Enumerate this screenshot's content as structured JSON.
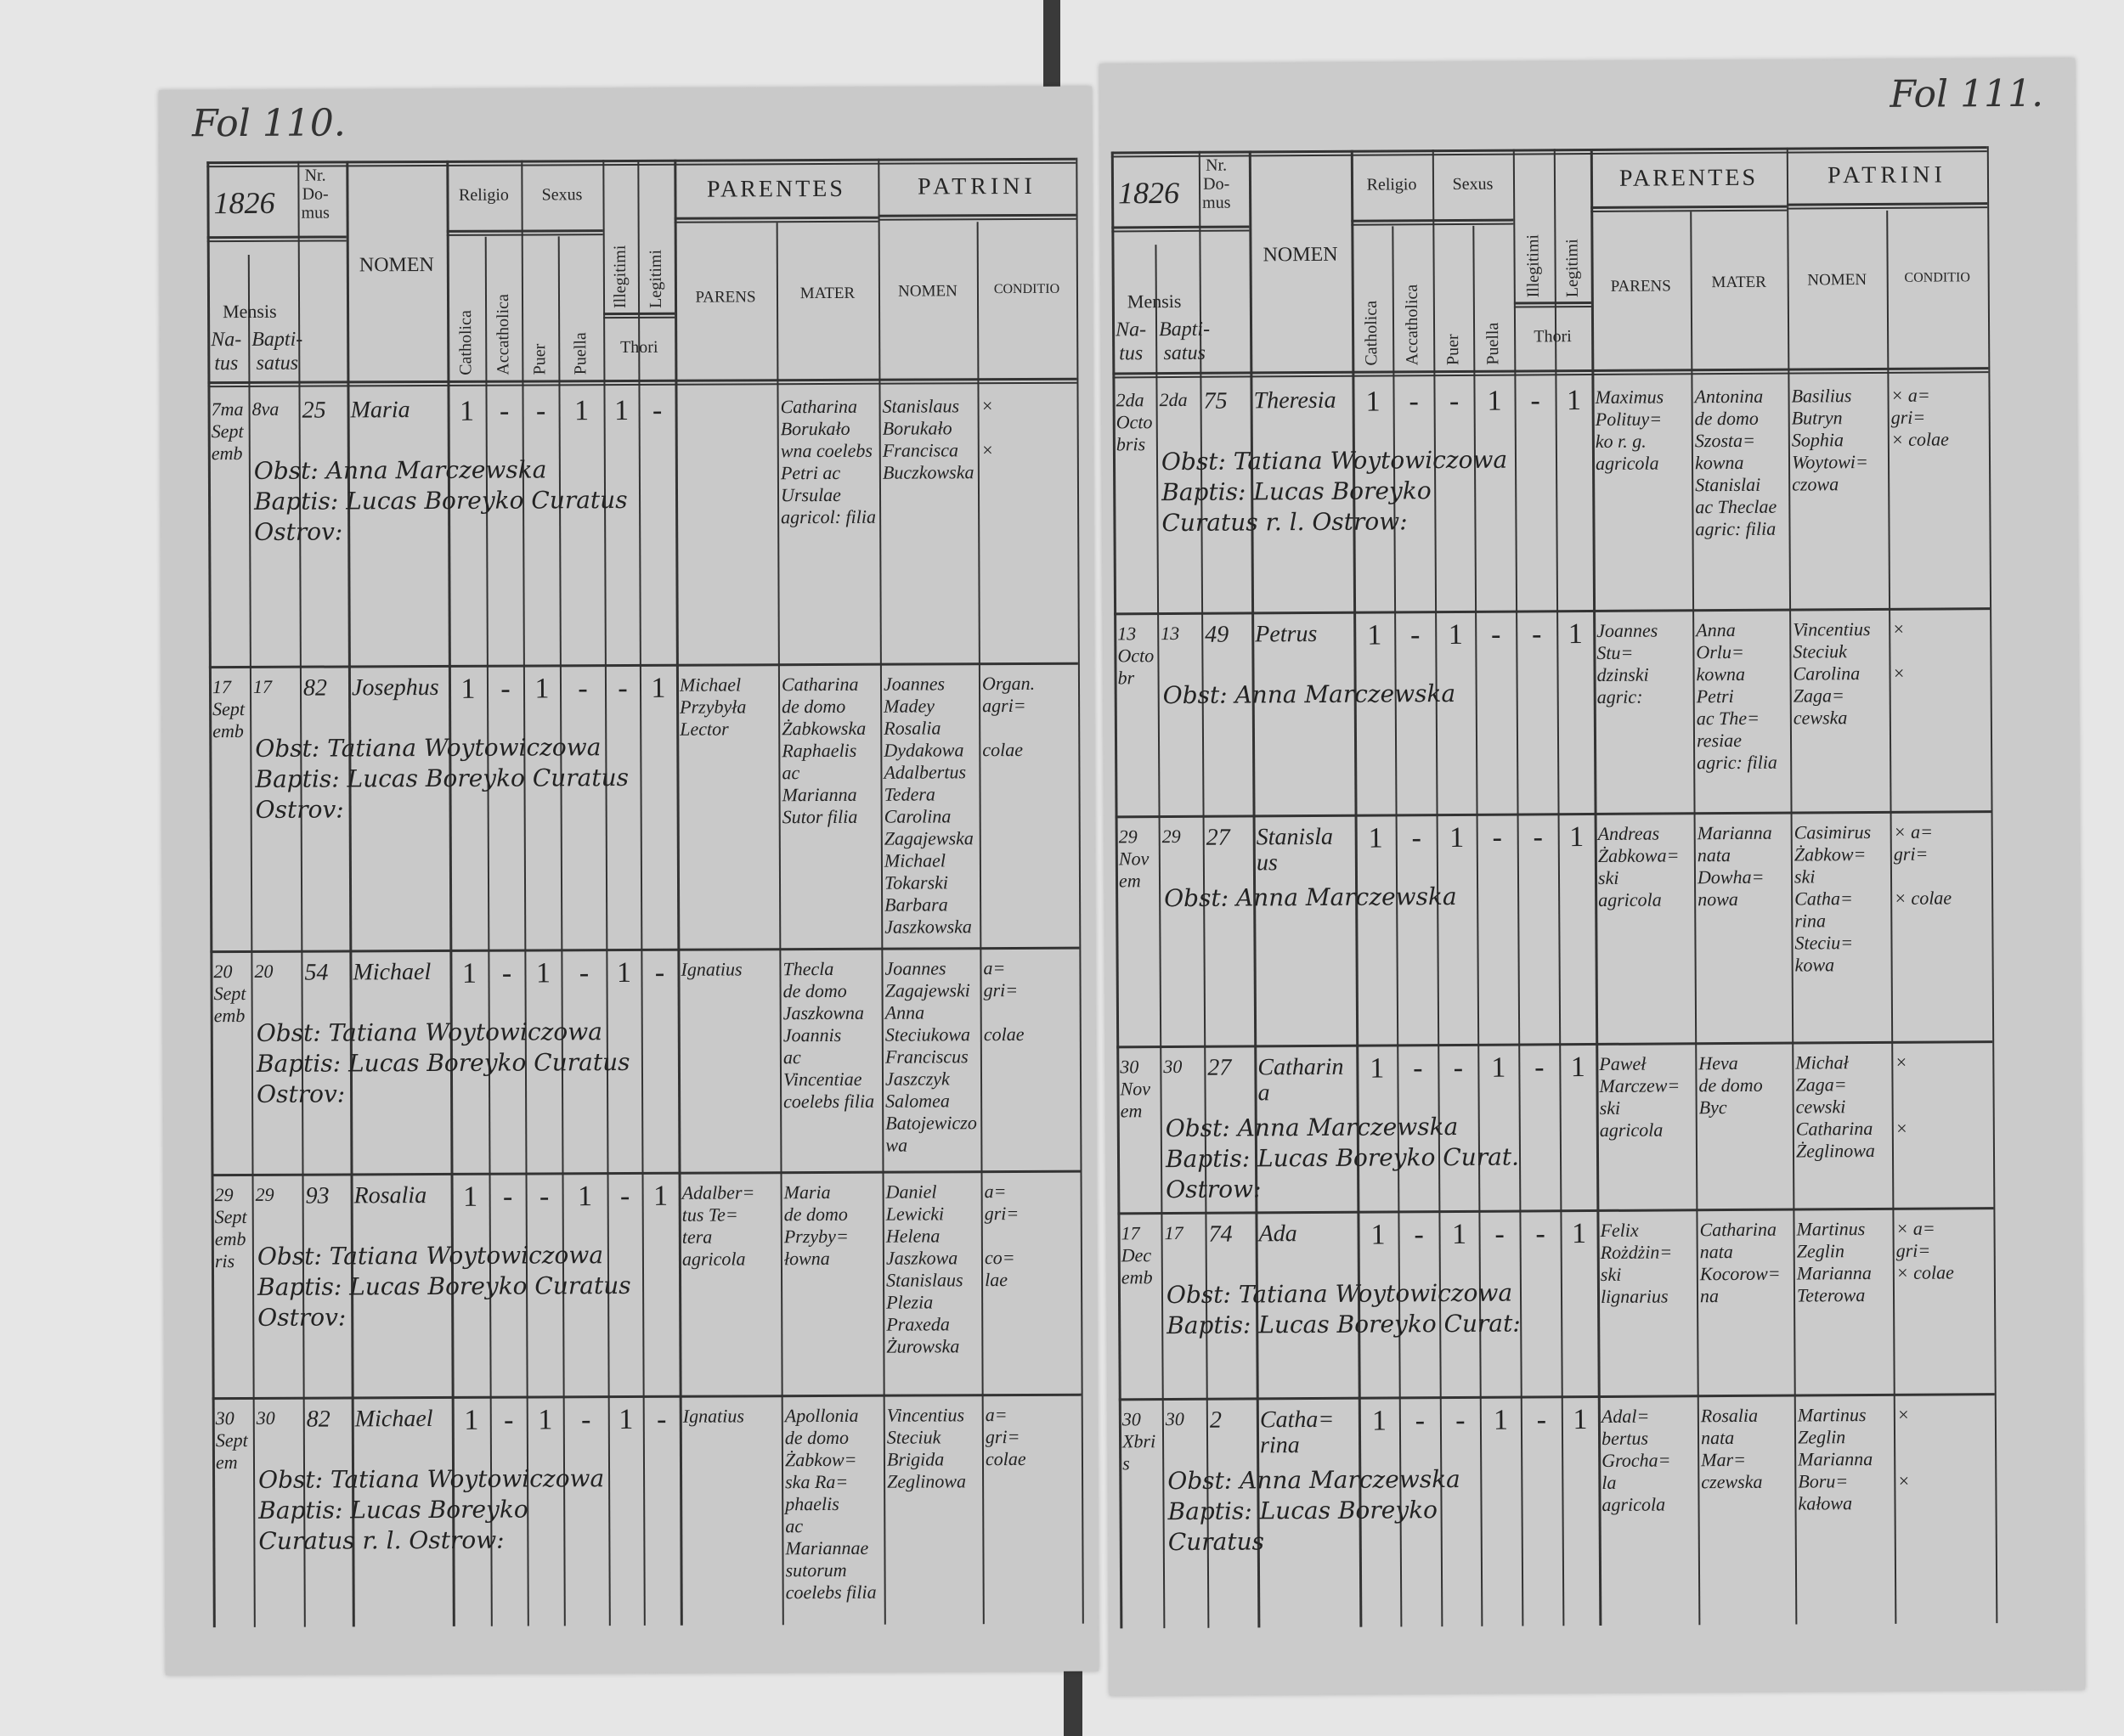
{
  "document": {
    "headers": {
      "mensis": "Mensis",
      "natus": "Na-\ntus",
      "baptisatus": "Bapti-\nsatus",
      "nr_domus": "Nr.\nDo-\nmus",
      "nomen": "NOMEN",
      "religio": "Religio",
      "catholica": "Catholica",
      "acatholica": "Accatholica",
      "sexus": "Sexus",
      "puer": "Puer",
      "puella": "Puella",
      "illegitimi": "Illegitimi",
      "legitimi": "Legitimi",
      "thori": "Thori",
      "parentes": "PARENTES",
      "parens": "PARENS",
      "mater": "MATER",
      "patrini": "PATRINI",
      "patrini_nomen": "NOMEN",
      "conditio": "CONDITIO"
    },
    "pages": [
      {
        "folio": "Fol 110.",
        "year": "1826",
        "entries": [
          {
            "natus": "7ma\nSeptemb",
            "baptisatus": "8va",
            "domus": "25",
            "nomen": "Maria",
            "catholica": "1",
            "acatholica": "-",
            "puer": "-",
            "puella": "1",
            "illegitimi": "1",
            "legitimi": "-",
            "parens": "",
            "mater": "Catharina\nBorukało\nwna coelebs\nPetri ac\nUrsulae\nagricol: filia",
            "patrini": "Stanislaus\nBorukało\nFrancisca\nBuczkowska",
            "conditio": "×\n\n×",
            "notes": "Obst: Anna Marczewska\nBaptis: Lucas Boreyko Curatus Ostrov:"
          },
          {
            "natus": "17\nSeptemb",
            "baptisatus": "17",
            "domus": "82",
            "nomen": "Josephus",
            "catholica": "1",
            "acatholica": "-",
            "puer": "1",
            "puella": "-",
            "illegitimi": "-",
            "legitimi": "1",
            "parens": "Michael\nPrzybyła\nLector",
            "mater": "Catharina\nde domo\nŻabkowska\nRaphaelis\nac Marianna\nSutor filia",
            "patrini": "Joannes\nMadey\nRosalia\nDydakowa\nAdalbertus\nTedera\nCarolina\nZagajewska\nMichael\nTokarski\nBarbara\nJaszkowska",
            "conditio": "Organ.\nagri=\n\ncolae",
            "notes": "Obst: Tatiana Woytowiczowa\nBaptis: Lucas Boreyko Curatus Ostrov:"
          },
          {
            "natus": "20\nSeptemb",
            "baptisatus": "20",
            "domus": "54",
            "nomen": "Michael",
            "catholica": "1",
            "acatholica": "-",
            "puer": "1",
            "puella": "-",
            "illegitimi": "1",
            "legitimi": "-",
            "parens": "Ignatius",
            "mater": "Thecla\nde domo\nJaszkowna\nJoannis\nac Vincentiae\ncoelebs filia",
            "patrini": "Joannes\nZagajewski\nAnna\nSteciukowa\nFranciscus\nJaszczyk\nSalomea\nBatojewiczowa",
            "conditio": "a=\ngri=\n\ncolae",
            "notes": "Obst: Tatiana Woytowiczowa\nBaptis: Lucas Boreyko Curatus Ostrov:"
          },
          {
            "natus": "29\nSeptembris",
            "baptisatus": "29",
            "domus": "93",
            "nomen": "Rosalia",
            "catholica": "1",
            "acatholica": "-",
            "puer": "-",
            "puella": "1",
            "illegitimi": "-",
            "legitimi": "1",
            "parens": "Adalber=\ntus Te=\ntera\nagricola",
            "mater": "Maria\nde domo\nPrzyby=\nłowna",
            "patrini": "Daniel\nLewicki\nHelena\nJaszkowa\nStanislaus\nPlezia\nPraxeda\nŻurowska",
            "conditio": "a=\ngri=\n\nco=\nlae",
            "notes": "Obst: Tatiana Woytowiczowa\nBaptis: Lucas Boreyko Curatus Ostrov:"
          },
          {
            "natus": "30\nSeptem",
            "baptisatus": "30",
            "domus": "82",
            "nomen": "Michael",
            "catholica": "1",
            "acatholica": "-",
            "puer": "1",
            "puella": "-",
            "illegitimi": "1",
            "legitimi": "-",
            "parens": "Ignatius",
            "mater": "Apollonia\nde domo\nŻabkow=\nska Ra=\nphaelis\nac Mariannae\nsutorum\ncoelebs filia",
            "patrini": "Vincentius\nSteciuk\nBrigida\nZeglinowa",
            "conditio": "a=\ngri=\ncolae",
            "notes": "Obst: Tatiana Woytowiczowa\nBaptis: Lucas Boreyko\nCuratus r. l. Ostrow:"
          }
        ]
      },
      {
        "folio": "Fol 111.",
        "year": "1826",
        "entries": [
          {
            "natus": "2da\nOctobris",
            "baptisatus": "2da",
            "domus": "75",
            "nomen": "Theresia",
            "catholica": "1",
            "acatholica": "-",
            "puer": "-",
            "puella": "1",
            "illegitimi": "-",
            "legitimi": "1",
            "parens": "Maximus\nPolituy=\nko r. g.\nagricola",
            "mater": "Antonina\nde domo\nSzosta=\nkowna\nStanislai\nac Theclae\nagric: filia",
            "patrini": "Basilius\nButryn\nSophia\nWoytowi=\nczowa",
            "conditio": "× a=\ngri=\n× colae",
            "notes": "Obst: Tatiana Woytowiczowa\nBaptis: Lucas Boreyko\nCuratus r. l. Ostrow:"
          },
          {
            "natus": "13\nOctobr",
            "baptisatus": "13",
            "domus": "49",
            "nomen": "Petrus",
            "catholica": "1",
            "acatholica": "-",
            "puer": "1",
            "puella": "-",
            "illegitimi": "-",
            "legitimi": "1",
            "parens": "Joannes\nStu=\ndzinski\nagric:",
            "mater": "Anna\nOrlu=\nkowna\nPetri\nac The=\nresiae\nagric: filia",
            "patrini": "Vincentius\nSteciuk\nCarolina\nZaga=\ncewska",
            "conditio": "×\n\n×",
            "notes": "Obst: Anna Marczewska"
          },
          {
            "natus": "29\nNovem",
            "baptisatus": "29",
            "domus": "27",
            "nomen": "Stanisla\nus",
            "catholica": "1",
            "acatholica": "-",
            "puer": "1",
            "puella": "-",
            "illegitimi": "-",
            "legitimi": "1",
            "parens": "Andreas\nŻabkowa=\nski\nagricola",
            "mater": "Marianna\nnata\nDowha=\nnowa",
            "patrini": "Casimirus\nŻabkow=\nski\nCatha=\nrina\nSteciu=\nkowa",
            "conditio": "× a=\ngri=\n\n× colae",
            "notes": "Obst: Anna Marczewska"
          },
          {
            "natus": "30\nNovem",
            "baptisatus": "30",
            "domus": "27",
            "nomen": "Catharina",
            "catholica": "1",
            "acatholica": "-",
            "puer": "-",
            "puella": "1",
            "illegitimi": "-",
            "legitimi": "1",
            "parens": "Paweł\nMarczew=\nski\nagricola",
            "mater": "Heva\nde domo\nByc",
            "patrini": "Michał\nZaga=\ncewski\nCatharina\nŻeglinowa",
            "conditio": "×\n\n\n×",
            "notes": "Obst: Anna Marczewska\nBaptis: Lucas Boreyko Curat. Ostrow:"
          },
          {
            "natus": "17\nDecemb",
            "baptisatus": "17",
            "domus": "74",
            "nomen": "Ada",
            "catholica": "1",
            "acatholica": "-",
            "puer": "1",
            "puella": "-",
            "illegitimi": "-",
            "legitimi": "1",
            "parens": "Felix\nRożdżin=\nski\nlignarius",
            "mater": "Catharina\nnata\nKocorow=\nna",
            "patrini": "Martinus\nZeglin\nMarianna\nTeterowa",
            "conditio": "× a=\ngri=\n× colae",
            "notes": "Obst: Tatiana Woytowiczowa\nBaptis: Lucas Boreyko Curat:"
          },
          {
            "natus": "30\nXbris",
            "baptisatus": "30",
            "domus": "2",
            "nomen": "Catha=\nrina",
            "catholica": "1",
            "acatholica": "-",
            "puer": "-",
            "puella": "1",
            "illegitimi": "-",
            "legitimi": "1",
            "parens": "Adal=\nbertus\nGrocha=\nla\nagricola",
            "mater": "Rosalia\nnata\nMar=\nczewska",
            "patrini": "Martinus\nZeglin\nMarianna\nBoru=\nkałowa",
            "conditio": "×\n\n\n×",
            "notes": "Obst: Anna Marczewska\nBaptis: Lucas Boreyko\nCuratus"
          }
        ]
      }
    ]
  }
}
